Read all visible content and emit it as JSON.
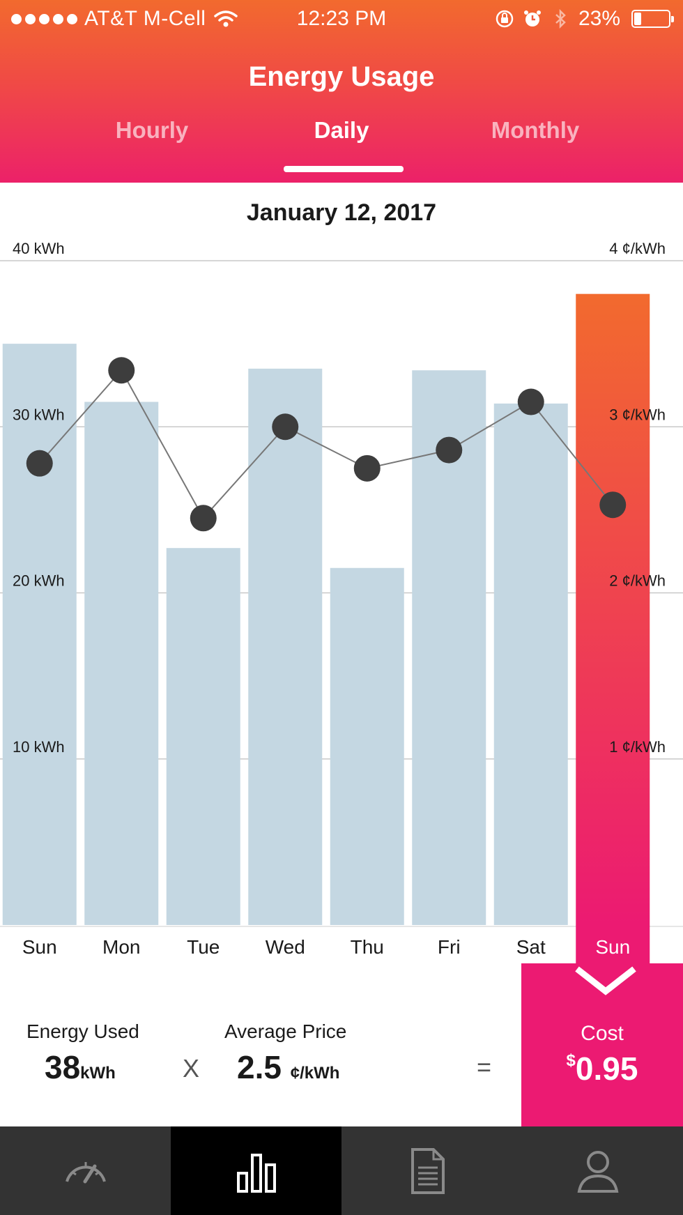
{
  "status_bar": {
    "carrier": "AT&T M-Cell",
    "time": "12:23 PM",
    "battery": "23%"
  },
  "header": {
    "title": "Energy Usage",
    "tabs": [
      {
        "label": "Hourly",
        "active": false
      },
      {
        "label": "Daily",
        "active": true
      },
      {
        "label": "Monthly",
        "active": false
      }
    ]
  },
  "chart_data": {
    "type": "bar",
    "title": "January 12, 2017",
    "categories": [
      "Sun",
      "Mon",
      "Tue",
      "Wed",
      "Thu",
      "Fri",
      "Sat",
      "Sun"
    ],
    "series": [
      {
        "name": "Energy Used",
        "unit": "kWh",
        "type": "bar",
        "values": [
          35,
          31.5,
          22.7,
          33.5,
          21.5,
          33.4,
          31.4,
          38
        ]
      },
      {
        "name": "Price",
        "unit": "¢/kWh",
        "type": "line",
        "values": [
          2.78,
          3.34,
          2.45,
          3.0,
          2.75,
          2.86,
          3.15,
          2.53
        ]
      }
    ],
    "left_axis": {
      "ticks": [
        "10 kWh",
        "20 kWh",
        "30 kWh",
        "40 kWh"
      ],
      "range": [
        0,
        40
      ]
    },
    "right_axis": {
      "ticks": [
        "1 ¢/kWh",
        "2 ¢/kWh",
        "3 ¢/kWh",
        "4 ¢/kWh"
      ],
      "range": [
        0,
        4
      ]
    },
    "highlighted_index": 7,
    "colors": {
      "bar": "#c4d7e2",
      "highlight_top": "#f26a2e",
      "highlight_bottom": "#ec1a72",
      "line": "#777777",
      "dot": "#3d3d3d",
      "grid": "#c8c8c8"
    }
  },
  "summary": {
    "energy_label": "Energy Used",
    "energy_value": "38",
    "energy_unit": "kWh",
    "times": "X",
    "price_label": "Average Price",
    "price_value": "2.5",
    "price_unit": "¢/kWh",
    "equals": "=",
    "cost_label": "Cost",
    "cost_currency": "$",
    "cost_value": "0.95"
  },
  "nav": [
    {
      "icon": "gauge-icon",
      "active": false
    },
    {
      "icon": "bar-chart-icon",
      "active": true
    },
    {
      "icon": "document-icon",
      "active": false
    },
    {
      "icon": "profile-icon",
      "active": false
    }
  ]
}
